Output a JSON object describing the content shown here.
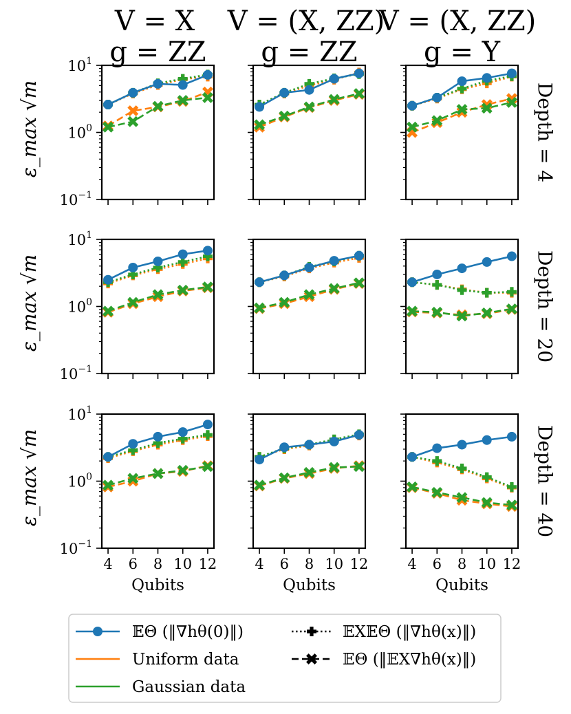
{
  "colors": {
    "grad": "#1f77b4",
    "uniform": "#ff7f0e",
    "gaussian": "#2ca02c"
  },
  "chart_data": {
    "type": "line",
    "y_scale": "log",
    "ylim": [
      0.1,
      10
    ],
    "xlim": [
      3.5,
      12.5
    ],
    "x": [
      4,
      6,
      8,
      10,
      12
    ],
    "x_ticks": [
      "4",
      "6",
      "8",
      "10",
      "12"
    ],
    "y_ticks": [
      {
        "value": 10,
        "base": "10",
        "exp": "1"
      },
      {
        "value": 1,
        "base": "10",
        "exp": "0"
      },
      {
        "value": 0.1,
        "base": "10",
        "exp": "−1"
      }
    ],
    "xlabel": "Qubits",
    "ylabel": "ε_max √m",
    "columns": [
      {
        "title1": "V = X",
        "title2": "g = ZZ"
      },
      {
        "title1": "V = (X, ZZ)",
        "title2": "g = ZZ"
      },
      {
        "title1": "V = (X, ZZ)",
        "title2": "g = Y"
      }
    ],
    "rows": [
      "Depth = 4",
      "Depth = 20",
      "Depth = 40"
    ],
    "panels": [
      [
        {
          "grad0": [
            2.6,
            3.9,
            5.3,
            5.1,
            7.2
          ],
          "uniform": {
            "gradx": [
              2.6,
              3.8,
              5.1,
              6.2,
              6.8
            ],
            "egrad": [
              1.25,
              2.1,
              2.4,
              2.9,
              4.0
            ]
          },
          "gaussian": {
            "gradx": [
              2.6,
              3.9,
              5.4,
              6.3,
              7.3
            ],
            "egrad": [
              1.2,
              1.45,
              2.45,
              3.0,
              3.3
            ]
          }
        },
        {
          "grad0": [
            2.4,
            3.9,
            4.3,
            6.3,
            7.6
          ],
          "uniform": {
            "gradx": [
              2.6,
              3.8,
              5.0,
              6.1,
              7.8
            ],
            "egrad": [
              1.2,
              1.7,
              2.35,
              3.0,
              3.7
            ]
          },
          "gaussian": {
            "gradx": [
              2.6,
              3.9,
              5.3,
              6.4,
              7.4
            ],
            "egrad": [
              1.3,
              1.75,
              2.4,
              3.1,
              3.8
            ]
          }
        },
        {
          "grad0": [
            2.5,
            3.3,
            5.8,
            6.5,
            7.6
          ],
          "uniform": {
            "gradx": [
              2.5,
              3.2,
              4.4,
              5.4,
              6.8
            ],
            "egrad": [
              1.0,
              1.4,
              2.0,
              2.6,
              3.2
            ]
          },
          "gaussian": {
            "gradx": [
              2.5,
              3.3,
              4.5,
              5.9,
              6.9
            ],
            "egrad": [
              1.2,
              1.5,
              2.2,
              2.3,
              2.8
            ]
          }
        }
      ],
      [
        {
          "grad0": [
            2.5,
            3.8,
            4.7,
            6.0,
            6.8
          ],
          "uniform": {
            "gradx": [
              2.2,
              2.9,
              3.6,
              4.3,
              5.2
            ],
            "egrad": [
              0.82,
              1.1,
              1.4,
              1.7,
              1.9
            ]
          },
          "gaussian": {
            "gradx": [
              2.3,
              3.0,
              3.8,
              4.6,
              5.6
            ],
            "egrad": [
              0.85,
              1.15,
              1.5,
              1.75,
              1.95
            ]
          }
        },
        {
          "grad0": [
            2.3,
            2.9,
            3.8,
            4.8,
            5.7
          ],
          "uniform": {
            "gradx": [
              2.3,
              2.8,
              3.7,
              4.5,
              5.3
            ],
            "egrad": [
              0.93,
              1.1,
              1.4,
              1.8,
              2.2
            ]
          },
          "gaussian": {
            "gradx": [
              2.3,
              2.9,
              3.9,
              4.7,
              5.7
            ],
            "egrad": [
              0.95,
              1.15,
              1.5,
              1.85,
              2.25
            ]
          }
        },
        {
          "grad0": [
            2.3,
            3.0,
            3.7,
            4.6,
            5.6
          ],
          "uniform": {
            "gradx": [
              2.3,
              2.1,
              1.8,
              1.6,
              1.6
            ],
            "egrad": [
              0.83,
              0.8,
              0.75,
              0.78,
              0.9
            ]
          },
          "gaussian": {
            "gradx": [
              2.3,
              2.1,
              1.75,
              1.6,
              1.65
            ],
            "egrad": [
              0.85,
              0.82,
              0.72,
              0.8,
              0.92
            ]
          }
        }
      ],
      [
        {
          "grad0": [
            2.3,
            3.6,
            4.6,
            5.4,
            7.0
          ],
          "uniform": {
            "gradx": [
              2.2,
              2.8,
              3.5,
              4.1,
              4.7
            ],
            "egrad": [
              0.82,
              1.0,
              1.3,
              1.4,
              1.7
            ]
          },
          "gaussian": {
            "gradx": [
              2.3,
              2.9,
              3.7,
              4.3,
              4.9
            ],
            "egrad": [
              0.87,
              1.1,
              1.3,
              1.45,
              1.65
            ]
          }
        },
        {
          "grad0": [
            2.1,
            3.2,
            3.5,
            3.9,
            4.9
          ],
          "uniform": {
            "gradx": [
              2.3,
              3.0,
              3.4,
              4.1,
              4.8
            ],
            "egrad": [
              0.85,
              1.1,
              1.3,
              1.55,
              1.7
            ]
          },
          "gaussian": {
            "gradx": [
              2.3,
              3.1,
              3.5,
              4.2,
              5.0
            ],
            "egrad": [
              0.87,
              1.12,
              1.35,
              1.6,
              1.65
            ]
          }
        },
        {
          "grad0": [
            2.3,
            3.1,
            3.5,
            4.1,
            4.6
          ],
          "uniform": {
            "gradx": [
              2.3,
              1.9,
              1.5,
              1.1,
              0.8
            ],
            "egrad": [
              0.8,
              0.66,
              0.52,
              0.46,
              0.42
            ]
          },
          "gaussian": {
            "gradx": [
              2.3,
              2.0,
              1.55,
              1.15,
              0.82
            ],
            "egrad": [
              0.82,
              0.68,
              0.57,
              0.48,
              0.44
            ]
          }
        }
      ]
    ],
    "legend": {
      "placement": "bottom-center",
      "entries": [
        {
          "key": "grad0",
          "label": "𝔼Θ (‖∇hθ(0)‖)",
          "style": "solid-circle"
        },
        {
          "key": "uniform",
          "label": "Uniform data",
          "style": "solid-orange"
        },
        {
          "key": "gaussian",
          "label": "Gaussian data",
          "style": "solid-green"
        },
        {
          "key": "gradx",
          "label": "𝔼X𝔼Θ (‖∇hθ(x)‖)",
          "style": "dotted-plus"
        },
        {
          "key": "egrad",
          "label": "𝔼Θ (‖𝔼X∇hθ(x)‖)",
          "style": "dashed-x"
        }
      ]
    }
  }
}
